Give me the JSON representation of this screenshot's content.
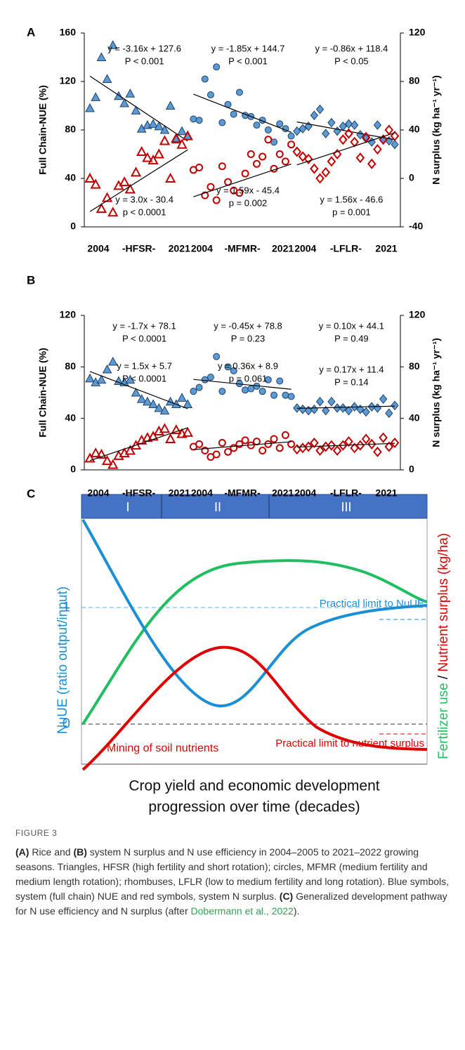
{
  "chart_data": [
    {
      "type": "scatter",
      "panel": "A",
      "ylabel": "Full Chain-NUE (%)",
      "y2label": "N surplus (kg ha⁻¹ yr⁻¹)",
      "ylim": [
        0,
        160
      ],
      "yticks": [
        0,
        40,
        80,
        120,
        160
      ],
      "y2lim": [
        -40,
        120
      ],
      "y2ticks": [
        -40,
        0,
        40,
        80,
        120
      ],
      "groups": [
        {
          "start": "2004",
          "label": "-HFSR-",
          "end": "2021",
          "marker": "triangle",
          "series": [
            {
              "axis": "y",
              "color": "#5b9bd5",
              "values": [
                98,
                107,
                140,
                122,
                150,
                108,
                102,
                110,
                96,
                81,
                84,
                85,
                83,
                80,
                100,
                72,
                79,
                75
              ],
              "fit": {
                "slope": -3.16,
                "intercept": 127.6,
                "label": "y = -3.16x + 127.6",
                "p": "P < 0.001"
              }
            },
            {
              "axis": "y2",
              "color": "#c00000",
              "values": [
                0,
                -5,
                -25,
                -16,
                -28,
                -6,
                -3,
                -9,
                5,
                22,
                17,
                15,
                20,
                31,
                0,
                33,
                28,
                35
              ],
              "fit": {
                "slope": 3.0,
                "intercept": -30.4,
                "label": "y = 3.0x - 30.4",
                "p": "p < 0.0001"
              }
            }
          ]
        },
        {
          "start": "2004",
          "label": "-MFMR-",
          "end": "2021",
          "marker": "circle",
          "series": [
            {
              "axis": "y",
              "color": "#5b9bd5",
              "values": [
                89,
                88,
                122,
                109,
                132,
                86,
                101,
                93,
                111,
                92,
                91,
                84,
                88,
                80,
                70,
                85,
                81,
                75
              ],
              "fit": {
                "slope": -1.85,
                "intercept": 144.7,
                "label": "y = -1.85x + 144.7",
                "p": "P < 0.001"
              }
            },
            {
              "axis": "y2",
              "color": "#c00000",
              "values": [
                7,
                9,
                -14,
                -7,
                -18,
                10,
                -3,
                -10,
                -12,
                4,
                20,
                12,
                18,
                32,
                8,
                20,
                14,
                28
              ],
              "fit": {
                "slope": 1.59,
                "intercept": -45.4,
                "label": "y = 1.59x - 45.4",
                "p": "p = 0.002"
              }
            }
          ]
        },
        {
          "start": "2004",
          "label": "-LFLR-",
          "end": "2021",
          "marker": "diamond",
          "series": [
            {
              "axis": "y",
              "color": "#5b9bd5",
              "values": [
                79,
                81,
                83,
                92,
                97,
                77,
                86,
                79,
                83,
                85,
                84,
                76,
                73,
                70,
                84,
                72,
                71,
                68
              ],
              "fit": {
                "slope": -0.86,
                "intercept": 118.4,
                "label": "y = -0.86x + 118.4",
                "p": "P < 0.05"
              }
            },
            {
              "axis": "y2",
              "color": "#c00000",
              "values": [
                22,
                18,
                16,
                8,
                0,
                5,
                14,
                20,
                32,
                37,
                30,
                17,
                34,
                12,
                24,
                32,
                40,
                35
              ],
              "fit": {
                "slope": 1.56,
                "intercept": -46.6,
                "label": "y = 1.56x - 46.6",
                "p": "p = 0.001"
              }
            }
          ]
        }
      ]
    },
    {
      "type": "scatter",
      "panel": "B",
      "ylabel": "Full Chain-NUE (%)",
      "y2label": "N surplus (kg ha⁻¹ yr⁻¹)",
      "ylim": [
        0,
        120
      ],
      "yticks": [
        0,
        40,
        80,
        120
      ],
      "y2lim": [
        0,
        120
      ],
      "y2ticks": [
        0,
        40,
        80,
        120
      ],
      "groups": [
        {
          "start": "2004",
          "label": "-HFSR-",
          "end": "2021",
          "marker": "triangle",
          "series": [
            {
              "axis": "y",
              "color": "#5b9bd5",
              "values": [
                71,
                68,
                70,
                78,
                84,
                69,
                68,
                70,
                60,
                55,
                53,
                51,
                48,
                46,
                53,
                51,
                56,
                51
              ],
              "fit": {
                "slope": -1.7,
                "intercept": 78.1,
                "label": "y = -1.7x + 78.1",
                "p": "P < 0.0001"
              }
            },
            {
              "axis": "y2",
              "color": "#c00000",
              "values": [
                9,
                13,
                12,
                7,
                4,
                11,
                13,
                15,
                19,
                23,
                25,
                26,
                30,
                32,
                24,
                31,
                28,
                29
              ],
              "fit": {
                "slope": 1.5,
                "intercept": 5.7,
                "label": "y = 1.5x + 5.7",
                "p": "P < 0.0001"
              }
            }
          ]
        },
        {
          "start": "2004",
          "label": "-MFMR-",
          "end": "2021",
          "marker": "circle",
          "series": [
            {
              "axis": "y",
              "color": "#5b9bd5",
              "values": [
                61,
                64,
                70,
                72,
                88,
                61,
                80,
                77,
                67,
                62,
                63,
                65,
                61,
                70,
                58,
                69,
                58,
                57
              ],
              "fit": {
                "slope": -0.45,
                "intercept": 78.8,
                "label": "y = -0.45x + 78.8",
                "p": "P = 0.23"
              }
            },
            {
              "axis": "y2",
              "color": "#c00000",
              "values": [
                18,
                20,
                15,
                10,
                12,
                21,
                14,
                17,
                20,
                23,
                19,
                22,
                15,
                20,
                24,
                17,
                27,
                20
              ],
              "fit": {
                "slope": 0.36,
                "intercept": 8.9,
                "label": "y = 0.36x + 8.9",
                "p": "p = 0.061"
              }
            }
          ]
        },
        {
          "start": "2004",
          "label": "-LFLR-",
          "end": "2021",
          "marker": "diamond",
          "series": [
            {
              "axis": "y",
              "color": "#5b9bd5",
              "values": [
                48,
                47,
                46,
                47,
                53,
                46,
                53,
                48,
                48,
                46,
                49,
                47,
                45,
                49,
                48,
                55,
                44,
                50
              ],
              "fit": {
                "slope": 0.1,
                "intercept": 44.1,
                "label": "y = 0.10x + 44.1",
                "p": "P = 0.49"
              }
            },
            {
              "axis": "y2",
              "color": "#c00000",
              "values": [
                16,
                17,
                18,
                21,
                15,
                18,
                19,
                15,
                19,
                22,
                17,
                19,
                24,
                20,
                14,
                25,
                18,
                21
              ],
              "fit": {
                "slope": 0.17,
                "intercept": 11.4,
                "label": "y = 0.17x + 11.4",
                "p": "P = 0.14"
              }
            }
          ]
        }
      ]
    }
  ],
  "panel_c": {
    "panel": "C",
    "stages": [
      "I",
      "II",
      "III"
    ],
    "y_tick_high": "1",
    "y_tick_low": "0",
    "ylabel": "NuUE (ratio output/input)",
    "y2label": [
      "Fertilizer use",
      " / ",
      "Nutrient surplus (kg/ha)"
    ],
    "limit_nuue": "Practical limit to NuUE",
    "limit_surplus": "Practical limit to nutrient surplus",
    "mining": "Mining of soil nutrients",
    "xlabel": [
      "Crop yield and economic development",
      "progression over time (decades)"
    ]
  },
  "caption": {
    "label": "FIGURE 3",
    "text": [
      "(A)",
      " Rice and ",
      "(B)",
      " system N surplus and N use efficiency in 2004–2005 to 2021–2022 growing seasons. Triangles, HFSR (high fertility and short rotation); circles, MFMR (medium fertility and medium length rotation); rhombuses, LFLR (low to medium fertility and long rotation). Blue symbols, system (full chain) NUE and red symbols, system N surplus. ",
      "(C)",
      " Generalized development pathway for N use efficiency and N surplus (after ",
      "Dobermann et al., 2022",
      ")."
    ]
  }
}
